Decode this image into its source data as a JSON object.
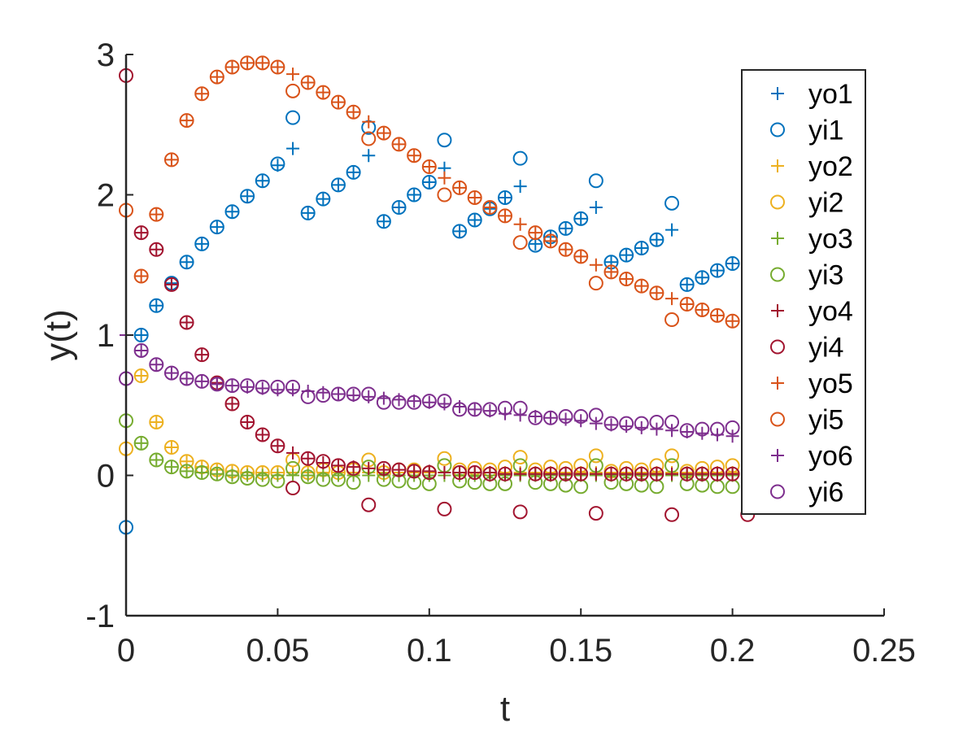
{
  "chart_data": {
    "type": "scatter",
    "title": "",
    "xlabel": "t",
    "ylabel": "y(t)",
    "xlim": [
      0,
      0.25
    ],
    "ylim": [
      -1,
      3
    ],
    "xticks": [
      0,
      0.05,
      0.1,
      0.15,
      0.2,
      0.25
    ],
    "xtick_labels": [
      "0",
      "0.05",
      "0.1",
      "0.15",
      "0.2",
      "0.25"
    ],
    "yticks": [
      -1,
      0,
      1,
      2,
      3
    ],
    "ytick_labels": [
      "-1",
      "0",
      "1",
      "2",
      "3"
    ],
    "grid": false,
    "legend_position": "top-right",
    "series": [
      {
        "name": "yo1",
        "marker": "plus",
        "color": "#0072BD",
        "x": [
          0.005,
          0.01,
          0.015,
          0.02,
          0.025,
          0.03,
          0.035,
          0.04,
          0.045,
          0.05,
          0.055,
          0.06,
          0.065,
          0.07,
          0.075,
          0.08,
          0.085,
          0.09,
          0.095,
          0.1,
          0.105,
          0.11,
          0.115,
          0.12,
          0.125,
          0.13,
          0.135,
          0.14,
          0.145,
          0.15,
          0.155,
          0.16,
          0.165,
          0.17,
          0.175,
          0.18,
          0.185,
          0.19,
          0.195,
          0.2
        ],
        "y": [
          1.0,
          1.21,
          1.37,
          1.52,
          1.65,
          1.77,
          1.88,
          1.99,
          2.1,
          2.21,
          2.33,
          1.87,
          1.97,
          2.07,
          2.16,
          2.28,
          1.81,
          1.91,
          2.0,
          2.09,
          2.19,
          1.74,
          1.82,
          1.9,
          1.98,
          2.06,
          1.65,
          1.7,
          1.76,
          1.83,
          1.91,
          1.52,
          1.57,
          1.62,
          1.68,
          1.75,
          1.36,
          1.41,
          1.46,
          1.51
        ]
      },
      {
        "name": "yi1",
        "marker": "circle",
        "color": "#0072BD",
        "x": [
          0,
          0.005,
          0.01,
          0.015,
          0.02,
          0.025,
          0.03,
          0.035,
          0.04,
          0.045,
          0.05,
          0.055,
          0.06,
          0.065,
          0.07,
          0.075,
          0.08,
          0.085,
          0.09,
          0.095,
          0.1,
          0.105,
          0.11,
          0.115,
          0.12,
          0.125,
          0.13,
          0.135,
          0.14,
          0.145,
          0.15,
          0.155,
          0.16,
          0.165,
          0.17,
          0.175,
          0.18,
          0.185,
          0.19,
          0.195,
          0.2
        ],
        "y": [
          -0.37,
          1.0,
          1.21,
          1.37,
          1.52,
          1.65,
          1.77,
          1.88,
          1.99,
          2.1,
          2.22,
          2.55,
          1.87,
          1.97,
          2.07,
          2.16,
          2.48,
          1.81,
          1.91,
          2.0,
          2.09,
          2.39,
          1.74,
          1.82,
          1.9,
          1.98,
          2.26,
          1.64,
          1.7,
          1.76,
          1.83,
          2.1,
          1.52,
          1.57,
          1.62,
          1.68,
          1.94,
          1.36,
          1.41,
          1.46,
          1.51
        ]
      },
      {
        "name": "yo2",
        "marker": "plus",
        "color": "#EDB120",
        "x": [
          0.005,
          0.01,
          0.015,
          0.02,
          0.025,
          0.03,
          0.035,
          0.04,
          0.045,
          0.05,
          0.055,
          0.06,
          0.065,
          0.07,
          0.075,
          0.08,
          0.085,
          0.09,
          0.095,
          0.1,
          0.105,
          0.11,
          0.115,
          0.12,
          0.125,
          0.13,
          0.135,
          0.14,
          0.145,
          0.15,
          0.155,
          0.16,
          0.165,
          0.17,
          0.175,
          0.18,
          0.185,
          0.19,
          0.195,
          0.2
        ],
        "y": [
          0.71,
          0.38,
          0.2,
          0.1,
          0.06,
          0.04,
          0.03,
          0.02,
          0.02,
          0.02,
          0.02,
          0.02,
          0.02,
          0.02,
          0.02,
          0.02,
          0.02,
          0.02,
          0.02,
          0.02,
          0.02,
          0.02,
          0.02,
          0.02,
          0.02,
          0.02,
          0.02,
          0.02,
          0.02,
          0.02,
          0.02,
          0.02,
          0.02,
          0.02,
          0.02,
          0.02,
          0.02,
          0.02,
          0.02,
          0.02
        ]
      },
      {
        "name": "yi2",
        "marker": "circle",
        "color": "#EDB120",
        "x": [
          0,
          0.005,
          0.01,
          0.015,
          0.02,
          0.025,
          0.03,
          0.035,
          0.04,
          0.045,
          0.05,
          0.055,
          0.06,
          0.065,
          0.07,
          0.075,
          0.08,
          0.085,
          0.09,
          0.095,
          0.1,
          0.105,
          0.11,
          0.115,
          0.12,
          0.125,
          0.13,
          0.135,
          0.14,
          0.145,
          0.15,
          0.155,
          0.16,
          0.165,
          0.17,
          0.175,
          0.18,
          0.185,
          0.19,
          0.195,
          0.2
        ],
        "y": [
          0.19,
          0.71,
          0.38,
          0.2,
          0.1,
          0.06,
          0.04,
          0.03,
          0.02,
          0.02,
          0.02,
          0.11,
          0.02,
          0.04,
          0.02,
          0.04,
          0.11,
          0.02,
          0.04,
          0.04,
          0.02,
          0.12,
          0.04,
          0.05,
          0.04,
          0.06,
          0.13,
          0.04,
          0.06,
          0.05,
          0.07,
          0.14,
          0.03,
          0.05,
          0.04,
          0.07,
          0.14,
          0.03,
          0.05,
          0.06,
          0.07
        ]
      },
      {
        "name": "yo3",
        "marker": "plus",
        "color": "#77AC30",
        "x": [
          0.005,
          0.01,
          0.015,
          0.02,
          0.025,
          0.03,
          0.035,
          0.04,
          0.045,
          0.05,
          0.055,
          0.06,
          0.065,
          0.07,
          0.075,
          0.08,
          0.085,
          0.09,
          0.095,
          0.1,
          0.105,
          0.11,
          0.115,
          0.12,
          0.125,
          0.13,
          0.135,
          0.14,
          0.145,
          0.15,
          0.155,
          0.16,
          0.165,
          0.17,
          0.175,
          0.18,
          0.185,
          0.19,
          0.195,
          0.2
        ],
        "y": [
          0.23,
          0.11,
          0.06,
          0.03,
          0.02,
          0.01,
          0.0,
          0.0,
          0.0,
          0.0,
          0.0,
          0.0,
          0.0,
          0.0,
          0.0,
          0.0,
          0.0,
          0.0,
          0.0,
          0.0,
          0.0,
          0.0,
          0.0,
          0.0,
          0.0,
          0.0,
          0.0,
          0.0,
          0.0,
          0.0,
          0.0,
          0.0,
          0.0,
          0.0,
          0.0,
          0.0,
          0.0,
          0.0,
          0.0,
          0.0
        ]
      },
      {
        "name": "yi3",
        "marker": "circle",
        "color": "#77AC30",
        "x": [
          0,
          0.005,
          0.01,
          0.015,
          0.02,
          0.025,
          0.03,
          0.035,
          0.04,
          0.045,
          0.05,
          0.055,
          0.06,
          0.065,
          0.07,
          0.075,
          0.08,
          0.085,
          0.09,
          0.095,
          0.1,
          0.105,
          0.11,
          0.115,
          0.12,
          0.125,
          0.13,
          0.135,
          0.14,
          0.145,
          0.15,
          0.155,
          0.16,
          0.165,
          0.17,
          0.175,
          0.18,
          0.185,
          0.19,
          0.195,
          0.2
        ],
        "y": [
          0.39,
          0.23,
          0.11,
          0.06,
          0.03,
          0.02,
          0.01,
          -0.01,
          -0.02,
          -0.03,
          -0.04,
          0.05,
          -0.01,
          -0.03,
          -0.03,
          -0.05,
          0.06,
          -0.03,
          -0.04,
          -0.05,
          -0.06,
          0.07,
          -0.04,
          -0.05,
          -0.06,
          -0.06,
          0.07,
          -0.05,
          -0.06,
          -0.07,
          -0.08,
          0.07,
          -0.05,
          -0.06,
          -0.07,
          -0.08,
          0.07,
          -0.06,
          -0.07,
          -0.08,
          -0.08
        ]
      },
      {
        "name": "yo4",
        "marker": "plus",
        "color": "#A2142F",
        "x": [
          0.005,
          0.01,
          0.015,
          0.02,
          0.025,
          0.03,
          0.035,
          0.04,
          0.045,
          0.05,
          0.055,
          0.06,
          0.065,
          0.07,
          0.075,
          0.08,
          0.085,
          0.09,
          0.095,
          0.1,
          0.105,
          0.11,
          0.115,
          0.12,
          0.125,
          0.13,
          0.135,
          0.14,
          0.145,
          0.15,
          0.155,
          0.16,
          0.165,
          0.17,
          0.175,
          0.18,
          0.185,
          0.19,
          0.195,
          0.2
        ],
        "y": [
          1.73,
          1.61,
          1.36,
          1.09,
          0.86,
          0.66,
          0.51,
          0.38,
          0.29,
          0.21,
          0.16,
          0.12,
          0.09,
          0.07,
          0.06,
          0.05,
          0.04,
          0.04,
          0.03,
          0.03,
          0.02,
          0.02,
          0.02,
          0.02,
          0.01,
          0.01,
          0.01,
          0.01,
          0.01,
          0.01,
          0.01,
          0.01,
          0.01,
          0.01,
          0.01,
          0.01,
          0.01,
          0.01,
          0.01,
          0.01
        ]
      },
      {
        "name": "yi4",
        "marker": "circle",
        "color": "#A2142F",
        "x": [
          0,
          0.005,
          0.01,
          0.015,
          0.02,
          0.025,
          0.03,
          0.035,
          0.04,
          0.045,
          0.05,
          0.055,
          0.06,
          0.065,
          0.07,
          0.075,
          0.08,
          0.085,
          0.09,
          0.095,
          0.1,
          0.105,
          0.11,
          0.115,
          0.12,
          0.125,
          0.13,
          0.135,
          0.14,
          0.145,
          0.15,
          0.155,
          0.16,
          0.165,
          0.17,
          0.175,
          0.18,
          0.185,
          0.19,
          0.195,
          0.2,
          0.205
        ],
        "y": [
          2.85,
          1.73,
          1.61,
          1.36,
          1.09,
          0.86,
          0.66,
          0.51,
          0.38,
          0.29,
          0.21,
          -0.09,
          0.12,
          0.1,
          0.07,
          0.05,
          -0.21,
          0.05,
          0.04,
          0.03,
          0.02,
          -0.24,
          0.02,
          0.02,
          0.01,
          0.01,
          -0.26,
          0.01,
          0.01,
          0.01,
          0.01,
          -0.27,
          0.01,
          0.01,
          0.01,
          0.01,
          -0.28,
          0.01,
          0.01,
          0.01,
          0.01,
          -0.28
        ]
      },
      {
        "name": "yo5",
        "marker": "plus",
        "color": "#D95319",
        "x": [
          0.005,
          0.01,
          0.015,
          0.02,
          0.025,
          0.03,
          0.035,
          0.04,
          0.045,
          0.05,
          0.055,
          0.06,
          0.065,
          0.07,
          0.075,
          0.08,
          0.085,
          0.09,
          0.095,
          0.1,
          0.105,
          0.11,
          0.115,
          0.12,
          0.125,
          0.13,
          0.135,
          0.14,
          0.145,
          0.15,
          0.155,
          0.16,
          0.165,
          0.17,
          0.175,
          0.18,
          0.185,
          0.19,
          0.195,
          0.2
        ],
        "y": [
          1.42,
          1.86,
          2.25,
          2.53,
          2.72,
          2.84,
          2.91,
          2.94,
          2.94,
          2.91,
          2.86,
          2.8,
          2.73,
          2.66,
          2.59,
          2.52,
          2.44,
          2.36,
          2.28,
          2.2,
          2.12,
          2.05,
          1.98,
          1.91,
          1.85,
          1.79,
          1.73,
          1.67,
          1.61,
          1.56,
          1.5,
          1.45,
          1.4,
          1.35,
          1.3,
          1.26,
          1.22,
          1.18,
          1.14,
          1.1
        ]
      },
      {
        "name": "yi5",
        "marker": "circle",
        "color": "#D95319",
        "x": [
          0,
          0.005,
          0.01,
          0.015,
          0.02,
          0.025,
          0.03,
          0.035,
          0.04,
          0.045,
          0.05,
          0.055,
          0.06,
          0.065,
          0.07,
          0.075,
          0.08,
          0.085,
          0.09,
          0.095,
          0.1,
          0.105,
          0.11,
          0.115,
          0.12,
          0.125,
          0.13,
          0.135,
          0.14,
          0.145,
          0.15,
          0.155,
          0.16,
          0.165,
          0.17,
          0.175,
          0.18,
          0.185,
          0.19,
          0.195,
          0.2
        ],
        "y": [
          1.89,
          1.42,
          1.86,
          2.25,
          2.53,
          2.72,
          2.84,
          2.91,
          2.94,
          2.94,
          2.91,
          2.74,
          2.8,
          2.73,
          2.66,
          2.59,
          2.4,
          2.44,
          2.36,
          2.28,
          2.2,
          2.0,
          2.05,
          1.98,
          1.91,
          1.85,
          1.66,
          1.73,
          1.67,
          1.61,
          1.56,
          1.37,
          1.45,
          1.4,
          1.35,
          1.3,
          1.11,
          1.22,
          1.18,
          1.14,
          1.1
        ]
      },
      {
        "name": "yo6",
        "marker": "plus",
        "color": "#7E2F8E",
        "x": [
          0,
          0.005,
          0.01,
          0.015,
          0.02,
          0.025,
          0.03,
          0.035,
          0.04,
          0.045,
          0.05,
          0.055,
          0.06,
          0.065,
          0.07,
          0.075,
          0.08,
          0.085,
          0.09,
          0.095,
          0.1,
          0.105,
          0.11,
          0.115,
          0.12,
          0.125,
          0.13,
          0.135,
          0.14,
          0.145,
          0.15,
          0.155,
          0.16,
          0.165,
          0.17,
          0.175,
          0.18,
          0.185,
          0.19,
          0.195,
          0.2
        ],
        "y": [
          1.0,
          0.89,
          0.79,
          0.73,
          0.69,
          0.67,
          0.65,
          0.64,
          0.63,
          0.62,
          0.61,
          0.61,
          0.6,
          0.59,
          0.58,
          0.57,
          0.56,
          0.55,
          0.54,
          0.53,
          0.52,
          0.51,
          0.49,
          0.47,
          0.46,
          0.44,
          0.43,
          0.42,
          0.41,
          0.4,
          0.39,
          0.37,
          0.36,
          0.35,
          0.34,
          0.33,
          0.32,
          0.31,
          0.3,
          0.29,
          0.28
        ]
      },
      {
        "name": "yi6",
        "marker": "circle",
        "color": "#7E2F8E",
        "x": [
          0,
          0.005,
          0.01,
          0.015,
          0.02,
          0.025,
          0.03,
          0.035,
          0.04,
          0.045,
          0.05,
          0.055,
          0.06,
          0.065,
          0.07,
          0.075,
          0.08,
          0.085,
          0.09,
          0.095,
          0.1,
          0.105,
          0.11,
          0.115,
          0.12,
          0.125,
          0.13,
          0.135,
          0.14,
          0.145,
          0.15,
          0.155,
          0.16,
          0.165,
          0.17,
          0.175,
          0.18,
          0.185,
          0.19,
          0.195,
          0.2
        ],
        "y": [
          0.69,
          0.89,
          0.79,
          0.73,
          0.69,
          0.67,
          0.65,
          0.64,
          0.64,
          0.63,
          0.63,
          0.63,
          0.56,
          0.57,
          0.58,
          0.58,
          0.58,
          0.52,
          0.52,
          0.52,
          0.53,
          0.53,
          0.47,
          0.47,
          0.47,
          0.48,
          0.48,
          0.41,
          0.41,
          0.42,
          0.42,
          0.43,
          0.37,
          0.37,
          0.37,
          0.38,
          0.38,
          0.32,
          0.33,
          0.33,
          0.34
        ]
      }
    ]
  }
}
